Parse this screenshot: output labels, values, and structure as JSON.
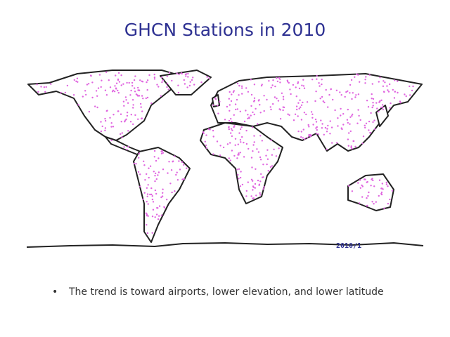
{
  "header": {
    "title": "GHCN Stations in 2010"
  },
  "map": {
    "date_label": "2010/1"
  },
  "bullets": [
    "The trend is toward airports, lower elevation, and lower latitude"
  ]
}
